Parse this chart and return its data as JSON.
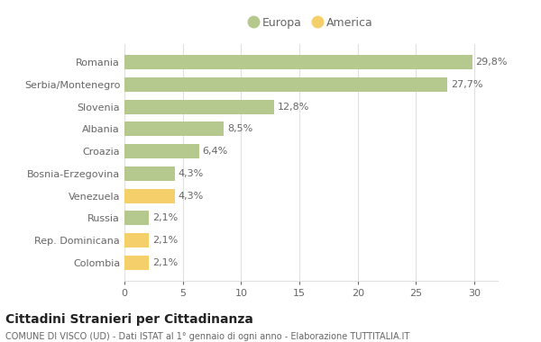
{
  "countries": [
    "Romania",
    "Serbia/Montenegro",
    "Slovenia",
    "Albania",
    "Croazia",
    "Bosnia-Erzegovina",
    "Venezuela",
    "Russia",
    "Rep. Dominicana",
    "Colombia"
  ],
  "values": [
    29.8,
    27.7,
    12.8,
    8.5,
    6.4,
    4.3,
    4.3,
    2.1,
    2.1,
    2.1
  ],
  "colors": [
    "#b5c98e",
    "#b5c98e",
    "#b5c98e",
    "#b5c98e",
    "#b5c98e",
    "#b5c98e",
    "#f5d06a",
    "#b5c98e",
    "#f5d06a",
    "#f5d06a"
  ],
  "labels": [
    "29,8%",
    "27,7%",
    "12,8%",
    "8,5%",
    "6,4%",
    "4,3%",
    "4,3%",
    "2,1%",
    "2,1%",
    "2,1%"
  ],
  "europa_color": "#b5c98e",
  "america_color": "#f5d06a",
  "title": "Cittadini Stranieri per Cittadinanza",
  "subtitle": "COMUNE DI VISCO (UD) - Dati ISTAT al 1° gennaio di ogni anno - Elaborazione TUTTITALIA.IT",
  "xlim": [
    0,
    32
  ],
  "xticks": [
    0,
    5,
    10,
    15,
    20,
    25,
    30
  ],
  "background_color": "#ffffff",
  "bar_background": "#ffffff",
  "grid_color": "#e0e0e0",
  "text_color": "#666666"
}
